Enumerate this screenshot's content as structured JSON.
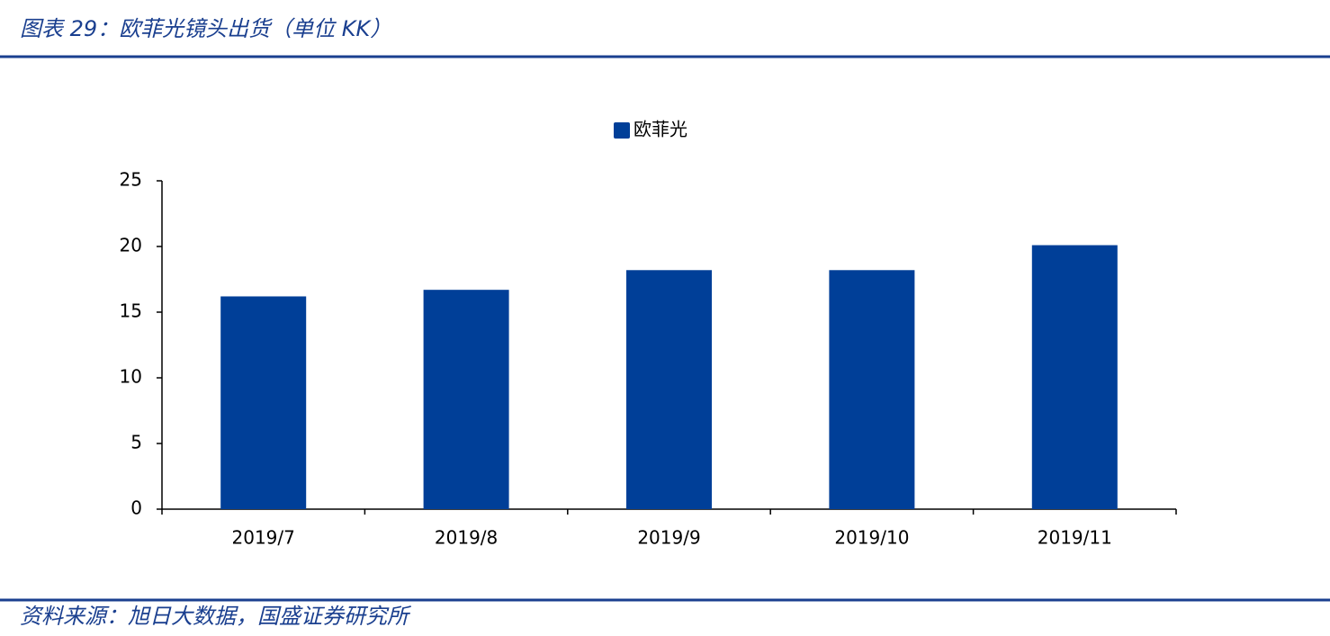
{
  "header": {
    "title": "图表 29：欧菲光镜头出货（单位 KK）"
  },
  "footer": {
    "source": "资料来源：旭日大数据，国盛证券研究所"
  },
  "chart_data": {
    "type": "bar",
    "categories": [
      "2019/7",
      "2019/8",
      "2019/9",
      "2019/10",
      "2019/11"
    ],
    "series": [
      {
        "name": "欧菲光",
        "color": "#003f98",
        "values": [
          16.2,
          16.7,
          18.2,
          18.2,
          20.1
        ]
      }
    ],
    "ylim": [
      0,
      25
    ],
    "yticks": [
      0,
      5,
      10,
      15,
      20,
      25
    ],
    "grid": false,
    "legend": "top"
  }
}
